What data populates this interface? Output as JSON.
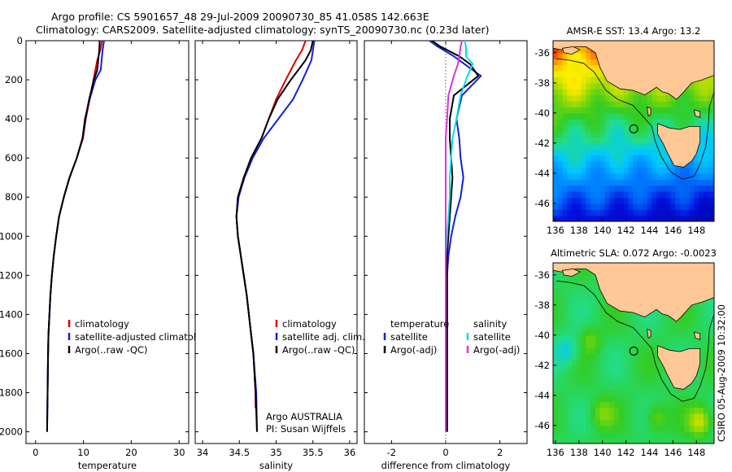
{
  "header": {
    "line1": "Argo profile: CS 5901657_48 29-Jul-2009 20090730_85 41.058S 142.663E",
    "line2": "Climatology: CARS2009. Satellite-adjusted climatology: synTS_20090730.nc (0.23d later)"
  },
  "side_stamp": "CSIRO 05-Aug-2009 10:32:00",
  "colors": {
    "climatology": "#dd0000",
    "satellite": "#1020dd",
    "argo": "#000000",
    "cyan": "#00dde8",
    "magenta": "#dd33dd",
    "land": "#ffc896"
  },
  "chart_data": [
    {
      "type": "line",
      "xlabel": "temperature",
      "xlim": [
        -2,
        32
      ],
      "ylim": [
        0,
        2060
      ],
      "y_reversed": true,
      "xticks": [
        "0",
        "10",
        "20",
        "30"
      ],
      "yticks": [
        "0",
        "200",
        "400",
        "600",
        "800",
        "1000",
        "1200",
        "1400",
        "1600",
        "1800",
        "2000"
      ],
      "legend": [
        "climatology",
        "satellite-adjusted climatolog",
        "Argo(..raw -QC)"
      ],
      "series": [
        {
          "name": "climatology",
          "color": "#dd0000",
          "x": [
            13.9,
            13.5,
            12.9,
            12.1,
            11.3,
            10.5,
            9.9,
            8.6,
            7.1,
            5.9,
            4.9,
            4.3,
            3.8,
            3.4,
            3.1,
            2.9,
            2.7,
            2.6,
            2.5,
            2.5
          ],
          "y": [
            0,
            50,
            100,
            200,
            300,
            400,
            500,
            600,
            700,
            800,
            900,
            1000,
            1100,
            1200,
            1300,
            1400,
            1500,
            1600,
            1800,
            1880
          ]
        },
        {
          "name": "satellite-adjusted climatology",
          "color": "#1020dd",
          "x": [
            14.3,
            14.0,
            13.6,
            12.5,
            11.3,
            10.3,
            9.8,
            8.6,
            7.1,
            5.9,
            4.9,
            4.3,
            3.8,
            3.4,
            3.1,
            2.9,
            2.7,
            2.6,
            2.5,
            2.4
          ],
          "y": [
            0,
            50,
            150,
            200,
            300,
            400,
            500,
            600,
            700,
            800,
            900,
            1000,
            1100,
            1200,
            1300,
            1400,
            1500,
            1600,
            1800,
            2000
          ]
        },
        {
          "name": "Argo(..raw -QC)",
          "color": "#000000",
          "x": [
            13.4,
            13.3,
            12.9,
            12.2,
            11.2,
            10.4,
            9.8,
            8.6,
            7.1,
            5.9,
            4.9,
            4.3,
            3.8,
            3.4,
            3.1,
            2.9,
            2.7,
            2.6,
            2.5,
            2.4
          ],
          "y": [
            0,
            50,
            150,
            200,
            300,
            400,
            500,
            600,
            700,
            800,
            900,
            1000,
            1100,
            1200,
            1300,
            1400,
            1500,
            1600,
            1800,
            2000
          ]
        }
      ]
    },
    {
      "type": "line",
      "xlabel": "salinity",
      "xlim": [
        33.9,
        36.1
      ],
      "ylim": [
        0,
        2060
      ],
      "y_reversed": true,
      "xticks": [
        "34",
        "34.5",
        "35",
        "35.5",
        "36"
      ],
      "legend": [
        "climatology",
        "satellite adj. clim.",
        "Argo(..raw -QC)"
      ],
      "annotation_line1": "Argo AUSTRALIA",
      "annotation_line2": "PI: Susan Wijffels",
      "series": [
        {
          "name": "climatology",
          "color": "#dd0000",
          "x": [
            35.4,
            35.35,
            35.27,
            35.13,
            35.0,
            34.9,
            34.8,
            34.66,
            34.56,
            34.48,
            34.46,
            34.48,
            34.52,
            34.56,
            34.6,
            34.63,
            34.66,
            34.69,
            34.72,
            34.72
          ],
          "y": [
            0,
            50,
            100,
            200,
            300,
            400,
            500,
            600,
            700,
            800,
            900,
            1000,
            1100,
            1200,
            1300,
            1400,
            1500,
            1600,
            1800,
            1880
          ]
        },
        {
          "name": "satellite adj. clim.",
          "color": "#1020dd",
          "x": [
            35.52,
            35.5,
            35.48,
            35.36,
            35.23,
            35.03,
            34.83,
            34.68,
            34.57,
            34.49,
            34.46,
            34.48,
            34.52,
            34.56,
            34.6,
            34.63,
            34.66,
            34.69,
            34.73,
            34.74
          ],
          "y": [
            0,
            50,
            100,
            200,
            300,
            400,
            500,
            600,
            700,
            800,
            900,
            1000,
            1100,
            1200,
            1300,
            1400,
            1500,
            1600,
            1800,
            2000
          ]
        },
        {
          "name": "Argo(..raw -QC)",
          "color": "#000000",
          "x": [
            35.5,
            35.47,
            35.4,
            35.2,
            35.02,
            34.9,
            34.8,
            34.66,
            34.56,
            34.48,
            34.46,
            34.48,
            34.52,
            34.56,
            34.6,
            34.63,
            34.66,
            34.69,
            34.72,
            34.74
          ],
          "y": [
            0,
            50,
            100,
            200,
            300,
            400,
            500,
            600,
            700,
            800,
            900,
            1000,
            1100,
            1200,
            1300,
            1400,
            1500,
            1600,
            1800,
            2000
          ]
        }
      ]
    },
    {
      "type": "line",
      "xlabel": "difference from climatology",
      "xlim": [
        -3,
        3
      ],
      "ylim": [
        0,
        2060
      ],
      "y_reversed": true,
      "xticks": [
        "-2",
        "0",
        "2"
      ],
      "legend_temperature": [
        "temperature",
        "satellite",
        "Argo(-adj)"
      ],
      "legend_salinity": [
        "salinity",
        "satellite",
        "Argo(-adj)"
      ],
      "series": [
        {
          "name": "temperature satellite",
          "color": "#1020dd",
          "x": [
            -0.6,
            -0.3,
            0.3,
            0.7,
            1.3,
            0.6,
            0.4,
            0.5,
            0.55,
            0.65,
            0.55,
            0.35,
            0.2,
            0.1,
            0.05,
            0.05,
            0.05,
            0.05,
            0.05,
            0.05,
            0.05
          ],
          "y": [
            0,
            30,
            80,
            120,
            180,
            280,
            400,
            500,
            600,
            700,
            800,
            900,
            1000,
            1100,
            1200,
            1300,
            1400,
            1500,
            1600,
            1800,
            2000
          ]
        },
        {
          "name": "temperature Argo(-adj)",
          "color": "#000000",
          "x": [
            -0.5,
            -0.2,
            0.5,
            0.9,
            1.2,
            0.3,
            0.15,
            0.15,
            0.2,
            0.25,
            0.2,
            0.15,
            0.1,
            0.05,
            0.05,
            0.05,
            0.05,
            0.05,
            0.05,
            0.05,
            0.05
          ],
          "y": [
            0,
            30,
            80,
            120,
            180,
            280,
            400,
            500,
            600,
            700,
            800,
            900,
            1000,
            1100,
            1200,
            1300,
            1400,
            1500,
            1600,
            1800,
            2000
          ]
        },
        {
          "name": "salinity satellite",
          "color": "#00dde8",
          "x": [
            0.7,
            0.75,
            0.75,
            1.0,
            0.8,
            0.55,
            0.4,
            0.25,
            0.2,
            0.15,
            0.15,
            0.1,
            0.05,
            0.0,
            0.0,
            0.0,
            0.0,
            0.0,
            0.0,
            0.0,
            0.0
          ],
          "y": [
            0,
            30,
            80,
            120,
            180,
            280,
            400,
            500,
            600,
            700,
            800,
            900,
            1000,
            1100,
            1200,
            1300,
            1400,
            1500,
            1600,
            1800,
            2000
          ]
        },
        {
          "name": "salinity Argo(-adj)",
          "color": "#dd33dd",
          "x": [
            0.6,
            0.55,
            0.5,
            0.45,
            0.3,
            0.1,
            0.05,
            0.0,
            0.0,
            0.0,
            0.0,
            0.0,
            0.0,
            0.0,
            0.0,
            0.0,
            0.0,
            0.0,
            0.0,
            0.0,
            0.0
          ],
          "y": [
            0,
            30,
            80,
            120,
            180,
            280,
            400,
            500,
            600,
            700,
            800,
            900,
            1000,
            1100,
            1200,
            1300,
            1400,
            1500,
            1600,
            1800,
            2000
          ]
        }
      ]
    },
    {
      "type": "heatmap",
      "title": "AMSR-E SST: 13.4 Argo: 13.2",
      "xlim": [
        135.8,
        149.5
      ],
      "ylim": [
        -47.2,
        -35.2
      ],
      "xticks": [
        "136",
        "138",
        "140",
        "142",
        "144",
        "146",
        "148"
      ],
      "yticks": [
        "-36",
        "-38",
        "-40",
        "-42",
        "-44",
        "-46"
      ],
      "profile_location": [
        142.663,
        -41.058
      ]
    },
    {
      "type": "heatmap",
      "title": "Altimetric SLA: 0.072 Argo: -0.0023",
      "xlim": [
        135.8,
        149.5
      ],
      "ylim": [
        -47.2,
        -35.2
      ],
      "xticks": [
        "136",
        "138",
        "140",
        "142",
        "144",
        "146",
        "148"
      ],
      "yticks": [
        "-36",
        "-38",
        "-40",
        "-42",
        "-44",
        "-46"
      ],
      "profile_location": [
        142.663,
        -41.058
      ]
    }
  ]
}
